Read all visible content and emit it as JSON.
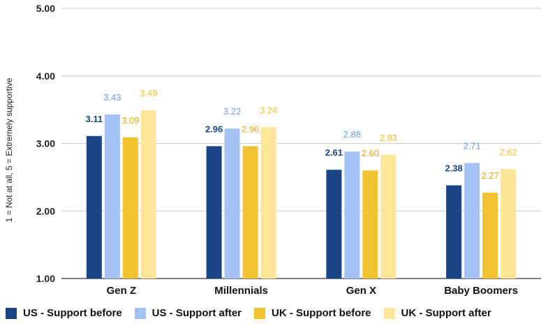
{
  "chart_data": {
    "type": "bar",
    "ylabel": "1 = Not at all, 5 = Extremely supportive",
    "ylim": [
      1,
      5
    ],
    "yticks": [
      "1.00",
      "2.00",
      "3.00",
      "4.00",
      "5.00"
    ],
    "categories": [
      "Gen Z",
      "Millennials",
      "Gen X",
      "Baby Boomers"
    ],
    "grid": true,
    "legend_position": "bottom",
    "series": [
      {
        "name": "US - Support before",
        "color": "#1c4587",
        "label_color": "#1c4587",
        "values": [
          3.11,
          2.96,
          2.61,
          2.38
        ],
        "labels": [
          "3.11",
          "2.96",
          "2.61",
          "2.38"
        ]
      },
      {
        "name": "US - Support after",
        "color": "#a4c2f4",
        "label_color": "#6d9eeb",
        "values": [
          3.43,
          3.22,
          2.88,
          2.71
        ],
        "labels": [
          "3.43",
          "3.22",
          "2.88",
          "2.71"
        ]
      },
      {
        "name": "UK - Support before",
        "color": "#f1c232",
        "label_color": "#e6a817",
        "values": [
          3.09,
          2.96,
          2.6,
          2.27
        ],
        "labels": [
          "3.09",
          "2.96",
          "2.60",
          "2.27"
        ]
      },
      {
        "name": "UK - Support after",
        "color": "#ffe599",
        "label_color": "#f1c232",
        "values": [
          3.49,
          3.24,
          2.83,
          2.62
        ],
        "labels": [
          "3.49",
          "3.24",
          "2.83",
          "2.62"
        ]
      }
    ]
  }
}
